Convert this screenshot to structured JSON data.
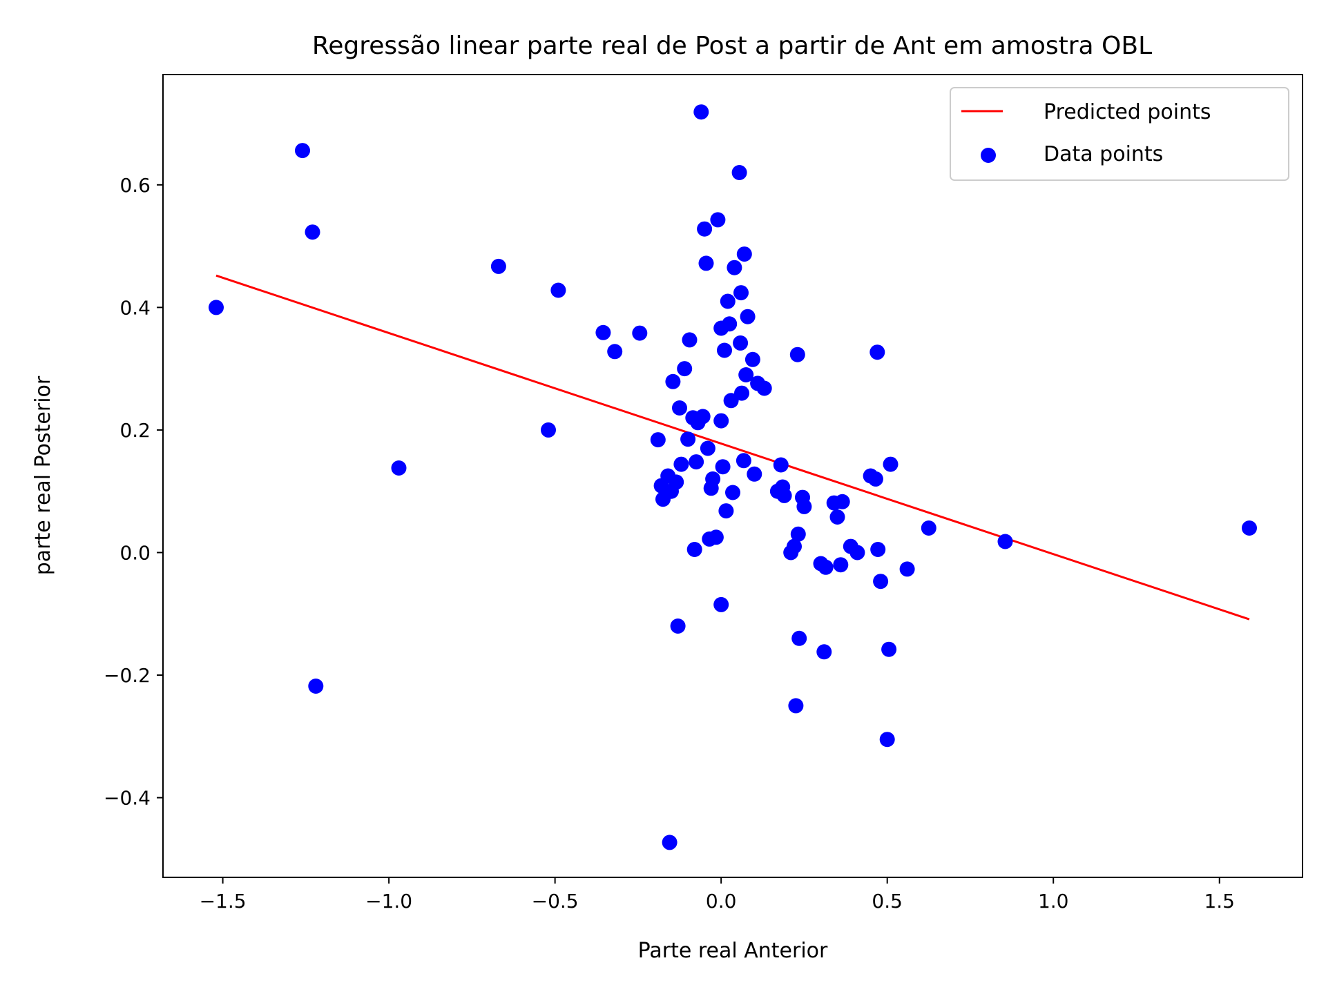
{
  "chart_data": {
    "type": "scatter",
    "title": "Regressão linear parte real de Post a partir de Ant em amostra OBL",
    "xlabel": "Parte real Anterior",
    "ylabel": "parte real Posterior",
    "xlim": [
      -1.68,
      1.75
    ],
    "ylim": [
      -0.53,
      0.78
    ],
    "xticks": [
      -1.5,
      -1.0,
      -0.5,
      0.0,
      0.5,
      1.0,
      1.5
    ],
    "xtick_labels": [
      "−1.5",
      "−1.0",
      "−0.5",
      "0.0",
      "0.5",
      "1.0",
      "1.5"
    ],
    "yticks": [
      -0.4,
      -0.2,
      0.0,
      0.2,
      0.4,
      0.6
    ],
    "ytick_labels": [
      "−0.4",
      "−0.2",
      "0.0",
      "0.2",
      "0.4",
      "0.6"
    ],
    "grid": false,
    "legend": {
      "placement": "top-right"
    },
    "series": [
      {
        "name": "Predicted points",
        "kind": "line",
        "color": "#ff0000",
        "x": [
          -1.52,
          1.59
        ],
        "y": [
          0.452,
          -0.109
        ]
      },
      {
        "name": "Data points",
        "kind": "scatter",
        "color": "#0000ff",
        "x": [
          -1.52,
          -1.26,
          -1.23,
          -1.22,
          -0.97,
          -0.67,
          -0.52,
          -0.49,
          -0.355,
          -0.32,
          -0.245,
          -0.19,
          -0.18,
          -0.175,
          -0.16,
          -0.155,
          -0.15,
          -0.145,
          -0.135,
          -0.13,
          -0.125,
          -0.12,
          -0.11,
          -0.1,
          -0.095,
          -0.085,
          -0.08,
          -0.075,
          -0.07,
          -0.06,
          -0.055,
          -0.05,
          -0.045,
          -0.04,
          -0.035,
          -0.03,
          -0.025,
          -0.015,
          -0.01,
          0.0,
          0.0,
          0.0,
          0.005,
          0.01,
          0.015,
          0.02,
          0.025,
          0.03,
          0.035,
          0.04,
          0.055,
          0.058,
          0.06,
          0.062,
          0.068,
          0.07,
          0.075,
          0.08,
          0.095,
          0.1,
          0.11,
          0.13,
          0.17,
          0.18,
          0.185,
          0.19,
          0.21,
          0.22,
          0.225,
          0.23,
          0.232,
          0.235,
          0.245,
          0.25,
          0.3,
          0.31,
          0.315,
          0.34,
          0.35,
          0.36,
          0.365,
          0.39,
          0.41,
          0.45,
          0.465,
          0.47,
          0.472,
          0.48,
          0.5,
          0.505,
          0.51,
          0.56,
          0.625,
          0.855,
          1.59
        ],
        "y": [
          0.4,
          0.656,
          0.523,
          -0.218,
          0.138,
          0.467,
          0.2,
          0.428,
          0.359,
          0.328,
          0.358,
          0.184,
          0.109,
          0.087,
          0.125,
          -0.473,
          0.1,
          0.279,
          0.115,
          -0.12,
          0.236,
          0.144,
          0.3,
          0.185,
          0.347,
          0.22,
          0.005,
          0.148,
          0.212,
          0.719,
          0.222,
          0.528,
          0.472,
          0.17,
          0.022,
          0.105,
          0.12,
          0.025,
          0.543,
          0.366,
          0.215,
          -0.085,
          0.14,
          0.33,
          0.068,
          0.41,
          0.373,
          0.248,
          0.098,
          0.465,
          0.62,
          0.342,
          0.424,
          0.26,
          0.15,
          0.487,
          0.29,
          0.385,
          0.315,
          0.128,
          0.276,
          0.268,
          0.1,
          0.143,
          0.107,
          0.093,
          0.0,
          0.01,
          -0.25,
          0.323,
          0.03,
          -0.14,
          0.09,
          0.075,
          -0.018,
          -0.162,
          -0.024,
          0.081,
          0.058,
          -0.02,
          0.083,
          0.01,
          0.0,
          0.125,
          0.12,
          0.327,
          0.005,
          -0.047,
          -0.305,
          -0.158,
          0.144,
          -0.027,
          0.04,
          0.018,
          0.04
        ]
      }
    ]
  }
}
